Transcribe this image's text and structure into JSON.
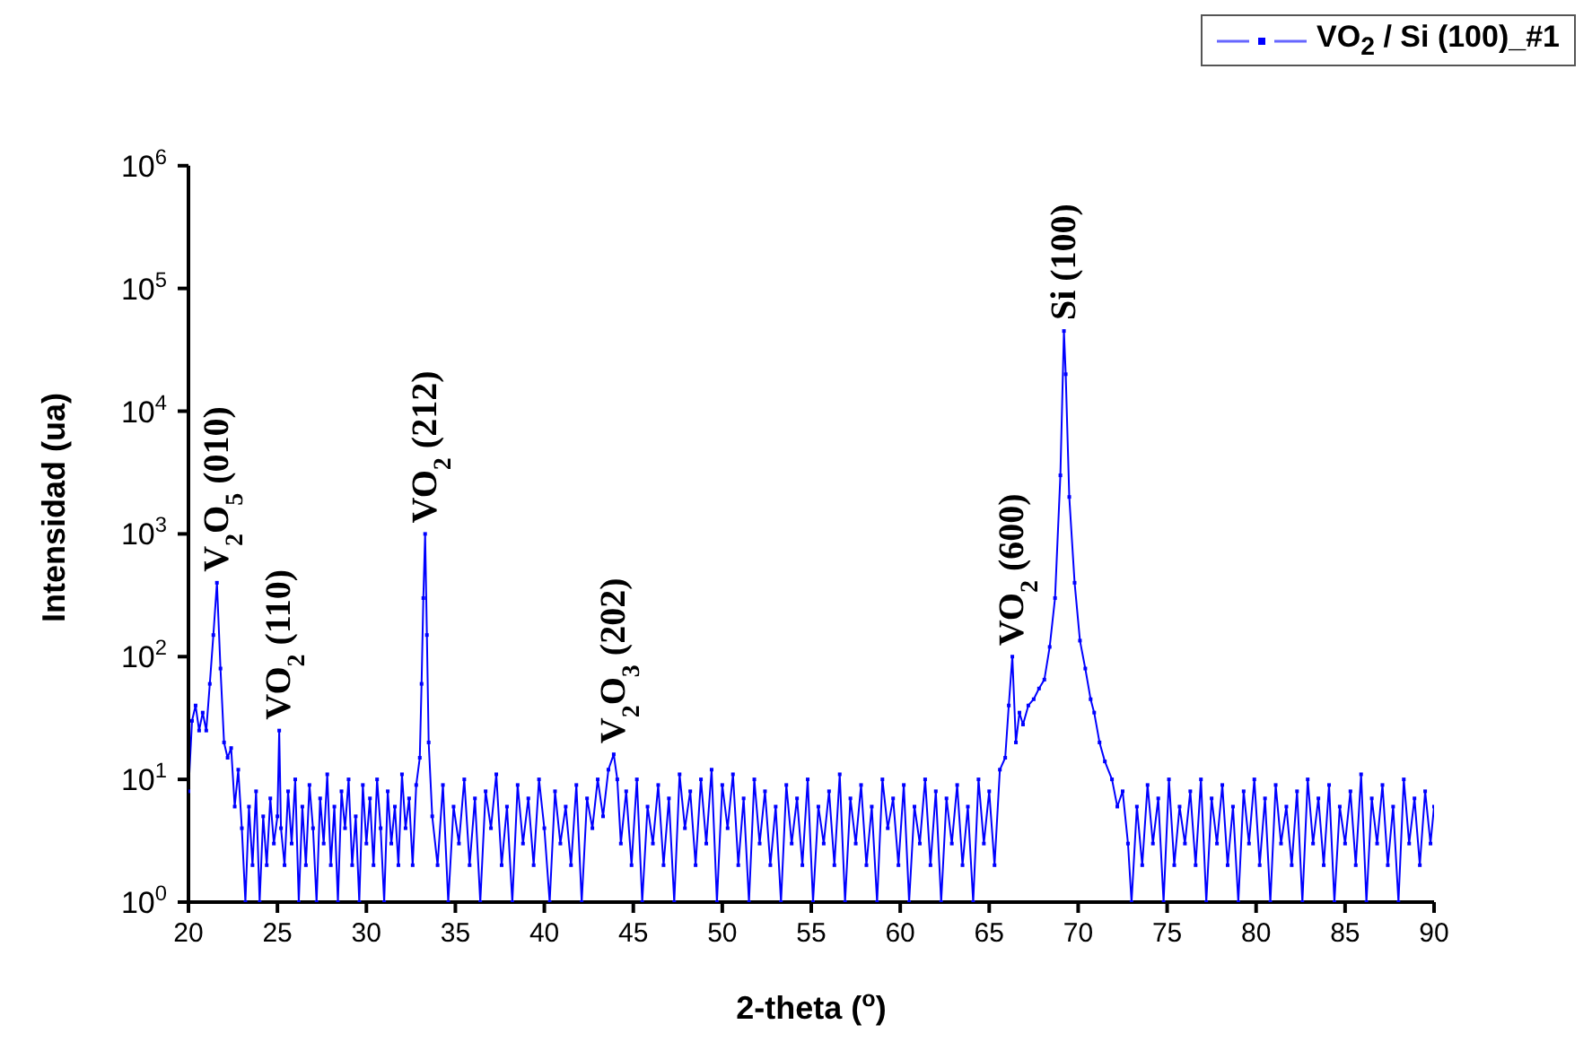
{
  "chart_data": {
    "type": "line",
    "xlabel": "2-theta ($^{o}$)",
    "ylabel": "Intensidad (ua)",
    "log": "y",
    "xlim": [
      20,
      90
    ],
    "xticks": [
      20,
      25,
      30,
      35,
      40,
      45,
      50,
      55,
      60,
      65,
      70,
      75,
      80,
      85,
      90
    ],
    "ylim": [
      1,
      1000000
    ],
    "yticks": [
      {
        "value": 1,
        "label": "10$^{0}$"
      },
      {
        "value": 10,
        "label": "10$^{1}$"
      },
      {
        "value": 100,
        "label": "10$^{2}$"
      },
      {
        "value": 1000,
        "label": "10$^{3}$"
      },
      {
        "value": 10000,
        "label": "10$^{4}$"
      },
      {
        "value": 100000,
        "label": "10$^{5}$"
      },
      {
        "value": 1000000,
        "label": "10$^{6}$"
      }
    ],
    "legend": "top right",
    "marker": "square",
    "line_style": "solid",
    "annotations": [
      {
        "text": "V$_{2}$O$_{5}$ (010)",
        "x": 21.6,
        "y": 400
      },
      {
        "text": "VO$_{2}$ (110)",
        "x": 25.1,
        "y": 25
      },
      {
        "text": "VO$_{2}$  (212)",
        "x": 33.3,
        "y": 1000
      },
      {
        "text": "V$_{2}$O$_{3}$  (202)",
        "x": 43.9,
        "y": 16
      },
      {
        "text": "VO$_{2}$  (600)",
        "x": 66.3,
        "y": 100
      },
      {
        "text": "Si  (100)",
        "x": 69.2,
        "y": 45000
      }
    ],
    "series": [
      {
        "name": "VO$_{2}$ / Si (100)_#1",
        "color": "#0000ff",
        "x": [
          20,
          20.2,
          20.4,
          20.6,
          20.8,
          21.0,
          21.2,
          21.4,
          21.6,
          21.8,
          22.0,
          22.2,
          22.4,
          22.6,
          22.8,
          23.0,
          23.2,
          23.4,
          23.6,
          23.8,
          24.0,
          24.2,
          24.4,
          24.6,
          24.8,
          25.0,
          25.1,
          25.2,
          25.4,
          25.6,
          25.8,
          26.0,
          26.2,
          26.4,
          26.6,
          26.8,
          27.0,
          27.2,
          27.4,
          27.6,
          27.8,
          28.0,
          28.2,
          28.4,
          28.6,
          28.8,
          29.0,
          29.2,
          29.4,
          29.6,
          29.8,
          30.0,
          30.2,
          30.4,
          30.6,
          30.8,
          31.0,
          31.2,
          31.4,
          31.6,
          31.8,
          32.0,
          32.2,
          32.4,
          32.6,
          32.8,
          33.0,
          33.1,
          33.2,
          33.3,
          33.4,
          33.5,
          33.7,
          34.0,
          34.3,
          34.6,
          34.9,
          35.2,
          35.5,
          35.8,
          36.1,
          36.4,
          36.7,
          37.0,
          37.3,
          37.6,
          37.9,
          38.2,
          38.5,
          38.8,
          39.1,
          39.4,
          39.7,
          40.0,
          40.3,
          40.6,
          40.9,
          41.2,
          41.5,
          41.8,
          42.1,
          42.4,
          42.7,
          43.0,
          43.3,
          43.6,
          43.9,
          44.1,
          44.3,
          44.6,
          44.9,
          45.2,
          45.5,
          45.8,
          46.1,
          46.4,
          46.7,
          47.0,
          47.3,
          47.6,
          47.9,
          48.2,
          48.5,
          48.8,
          49.1,
          49.4,
          49.7,
          50.0,
          50.3,
          50.6,
          50.9,
          51.2,
          51.5,
          51.8,
          52.1,
          52.4,
          52.7,
          53.0,
          53.3,
          53.6,
          53.9,
          54.2,
          54.5,
          54.8,
          55.1,
          55.4,
          55.7,
          56.0,
          56.3,
          56.6,
          56.9,
          57.2,
          57.5,
          57.8,
          58.1,
          58.4,
          58.7,
          59.0,
          59.3,
          59.6,
          59.9,
          60.2,
          60.5,
          60.8,
          61.1,
          61.4,
          61.7,
          62.0,
          62.3,
          62.6,
          62.9,
          63.2,
          63.5,
          63.8,
          64.1,
          64.4,
          64.7,
          65.0,
          65.3,
          65.6,
          65.9,
          66.1,
          66.3,
          66.5,
          66.7,
          66.9,
          67.2,
          67.5,
          67.8,
          68.1,
          68.4,
          68.7,
          69.0,
          69.2,
          69.3,
          69.5,
          69.8,
          70.1,
          70.4,
          70.7,
          70.9,
          71.2,
          71.5,
          71.9,
          72.2,
          72.5,
          72.8,
          73.0,
          73.3,
          73.6,
          73.9,
          74.2,
          74.5,
          74.8,
          75.1,
          75.4,
          75.7,
          76.0,
          76.3,
          76.6,
          76.9,
          77.2,
          77.5,
          77.8,
          78.1,
          78.4,
          78.7,
          79.0,
          79.3,
          79.6,
          79.9,
          80.2,
          80.5,
          80.8,
          81.1,
          81.4,
          81.7,
          82.0,
          82.3,
          82.6,
          82.9,
          83.2,
          83.5,
          83.8,
          84.1,
          84.4,
          84.7,
          85.0,
          85.3,
          85.6,
          85.9,
          86.2,
          86.5,
          86.8,
          87.1,
          87.4,
          87.7,
          88.0,
          88.3,
          88.6,
          88.9,
          89.2,
          89.5,
          89.8,
          90.0
        ],
        "values": [
          8,
          30,
          40,
          25,
          35,
          25,
          60,
          150,
          400,
          80,
          20,
          15,
          18,
          6,
          12,
          4,
          1,
          6,
          2,
          8,
          1,
          5,
          2,
          7,
          3,
          5,
          25,
          4,
          2,
          8,
          3,
          10,
          1,
          6,
          2,
          9,
          4,
          1,
          7,
          3,
          11,
          2,
          6,
          1,
          8,
          4,
          10,
          2,
          5,
          1,
          9,
          3,
          7,
          2,
          10,
          4,
          1,
          8,
          3,
          6,
          2,
          11,
          4,
          7,
          2,
          9,
          15,
          60,
          300,
          1000,
          150,
          20,
          5,
          2,
          9,
          1,
          6,
          3,
          10,
          2,
          7,
          1,
          8,
          4,
          11,
          2,
          6,
          1,
          9,
          3,
          7,
          2,
          10,
          4,
          1,
          8,
          3,
          6,
          2,
          9,
          1,
          7,
          4,
          10,
          5,
          12,
          16,
          10,
          3,
          8,
          2,
          10,
          1,
          6,
          3,
          9,
          2,
          7,
          1,
          11,
          4,
          8,
          2,
          10,
          3,
          12,
          1,
          9,
          4,
          11,
          2,
          7,
          1,
          10,
          3,
          8,
          2,
          6,
          1,
          9,
          3,
          7,
          2,
          10,
          1,
          6,
          3,
          8,
          2,
          11,
          1,
          7,
          3,
          9,
          2,
          6,
          1,
          10,
          4,
          7,
          2,
          9,
          1,
          6,
          3,
          10,
          2,
          8,
          1,
          7,
          3,
          9,
          2,
          6,
          1,
          10,
          3,
          8,
          2,
          12,
          15,
          40,
          100,
          20,
          35,
          28,
          40,
          45,
          55,
          65,
          120,
          300,
          3000,
          45000,
          20000,
          2000,
          400,
          135,
          80,
          45,
          35,
          20,
          14,
          10,
          6,
          8,
          3,
          1,
          6,
          2,
          9,
          3,
          7,
          1,
          10,
          2,
          6,
          3,
          8,
          2,
          10,
          1,
          7,
          3,
          9,
          2,
          6,
          1,
          8,
          3,
          10,
          2,
          7,
          1,
          9,
          3,
          6,
          2,
          8,
          1,
          10,
          3,
          7,
          2,
          9,
          1,
          6,
          3,
          8,
          2,
          11,
          1,
          7,
          3,
          9,
          2,
          6,
          1,
          10,
          3,
          7,
          2,
          8,
          3,
          6
        ]
      }
    ]
  }
}
